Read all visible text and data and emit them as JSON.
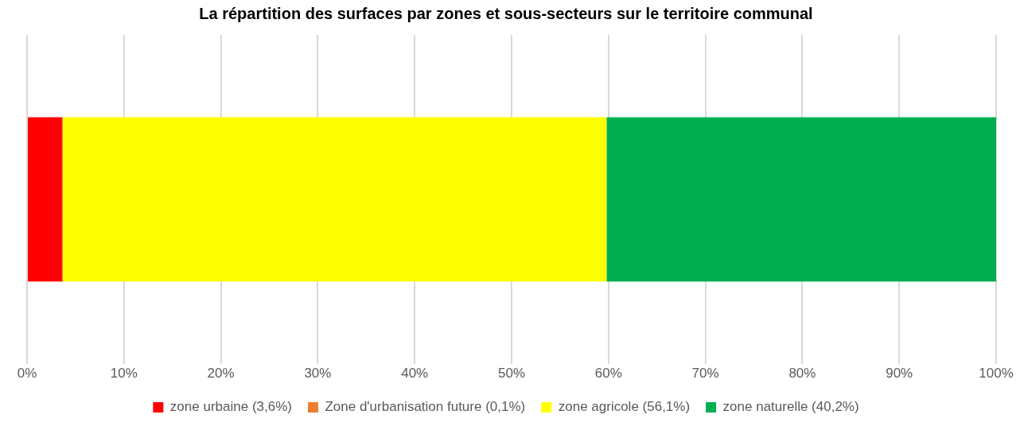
{
  "chart_data": {
    "type": "bar",
    "orientation": "horizontal",
    "stacked": true,
    "title": "La répartition des surfaces par zones et sous-secteurs sur le territoire communal",
    "categories": [
      null
    ],
    "series": [
      {
        "name": "zone urbaine (3,6%)",
        "color": "#ff0000",
        "values": [
          3.6
        ]
      },
      {
        "name": "Zone d'urbanisation future (0,1%)",
        "color": "#ed7d31",
        "values": [
          0.1
        ]
      },
      {
        "name": "zone agricole (56,1%)",
        "color": "#ffff00",
        "values": [
          56.1
        ]
      },
      {
        "name": "zone naturelle (40,2%)",
        "color": "#00b050",
        "values": [
          40.2
        ]
      }
    ],
    "xlim": [
      0,
      100
    ],
    "xticks": [
      {
        "value": 0,
        "label": "0%"
      },
      {
        "value": 10,
        "label": "10%"
      },
      {
        "value": 20,
        "label": "20%"
      },
      {
        "value": 30,
        "label": "30%"
      },
      {
        "value": 40,
        "label": "40%"
      },
      {
        "value": 50,
        "label": "50%"
      },
      {
        "value": 60,
        "label": "60%"
      },
      {
        "value": 70,
        "label": "70%"
      },
      {
        "value": 80,
        "label": "80%"
      },
      {
        "value": 90,
        "label": "90%"
      },
      {
        "value": 100,
        "label": "100%"
      }
    ],
    "grid": "x",
    "legend": "bottom"
  }
}
